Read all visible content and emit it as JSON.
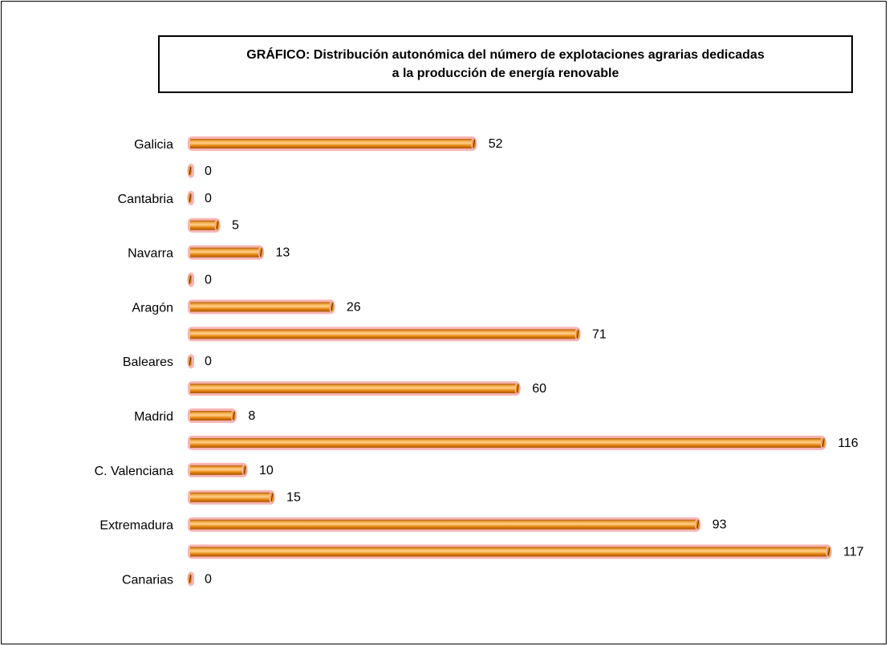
{
  "chart_data": {
    "type": "bar",
    "orientation": "horizontal",
    "title": "GRÁFICO: Distribución autonómica del número de explotaciones agrarias dedicadas\na la producción de energía renovable",
    "categories": [
      "Galicia",
      "",
      "Cantabria",
      "",
      "Navarra",
      "",
      "Aragón",
      "",
      "Baleares",
      "",
      "Madrid",
      "",
      "C. Valenciana",
      "",
      "Extremadura",
      "",
      "Canarias"
    ],
    "values": [
      52,
      0,
      0,
      5,
      13,
      0,
      26,
      71,
      0,
      60,
      8,
      116,
      10,
      15,
      93,
      117,
      0
    ],
    "value_labels": [
      "52",
      "0",
      "0",
      "5",
      "13",
      "0",
      "26",
      "71",
      "0",
      "60",
      "8",
      "116",
      "10",
      "15",
      "93",
      "117",
      "0"
    ],
    "xlim": [
      0,
      117
    ],
    "bar_color": "#e8901c",
    "bar_outline_color": "#f7b5b5",
    "grid": false
  }
}
